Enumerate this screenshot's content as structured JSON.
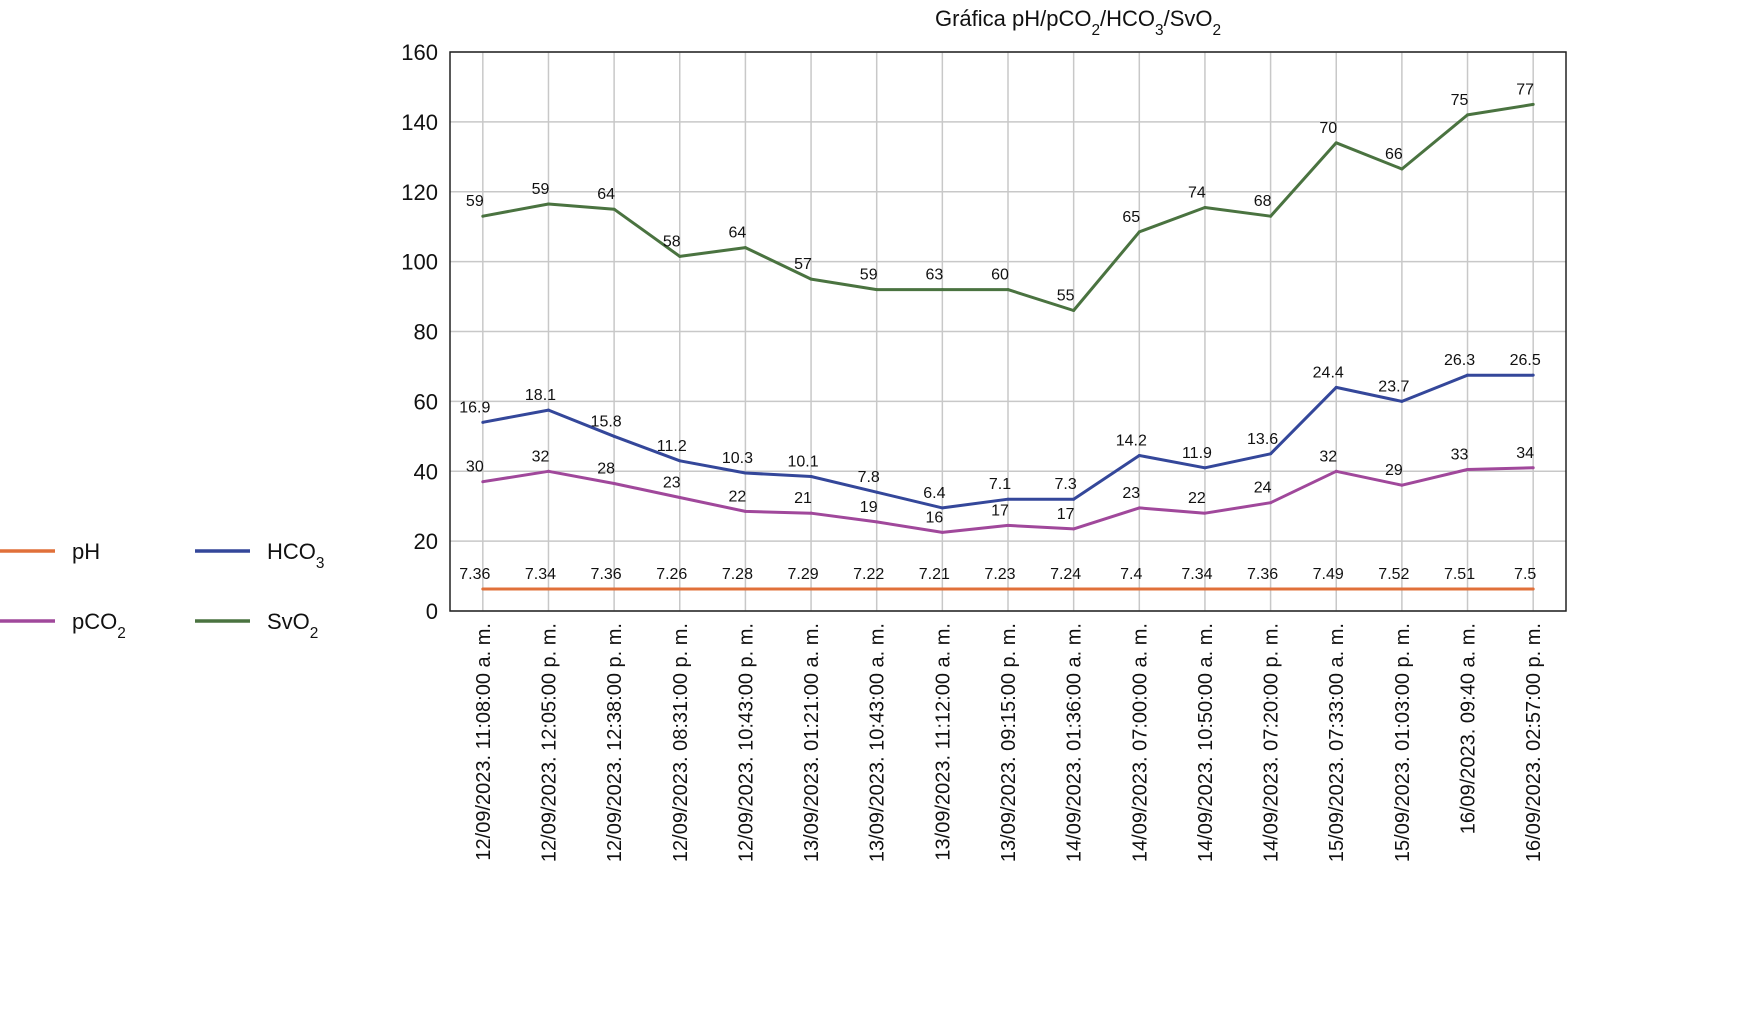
{
  "chart_data": {
    "type": "line",
    "title": "Gráfica pH/pCO₂/HCO₃/SvO₂",
    "title_parts": [
      {
        "text": "Gráfica pH/pCO",
        "sub": false
      },
      {
        "text": "2",
        "sub": true
      },
      {
        "text": "/HCO",
        "sub": false
      },
      {
        "text": "3",
        "sub": true
      },
      {
        "text": "/SvO",
        "sub": false
      },
      {
        "text": "2",
        "sub": true
      }
    ],
    "xlabel": "",
    "ylabel": "",
    "ylim": [
      0,
      160
    ],
    "yticks": [
      0,
      20,
      40,
      60,
      80,
      100,
      120,
      140,
      160
    ],
    "ytick_labels": [
      "0",
      "20",
      "40",
      "60",
      "80",
      "100",
      "120",
      "140",
      "160"
    ],
    "grid": true,
    "legend_position": "left",
    "categories": [
      "12/09/2023. 11:08:00 a. m.",
      "12/09/2023. 12:05:00 p. m.",
      "12/09/2023. 12:38:00 p. m.",
      "12/09/2023. 08:31:00 p. m.",
      "12/09/2023. 10:43:00 p. m.",
      "13/09/2023. 01:21:00 a. m.",
      "13/09/2023. 10:43:00 a. m.",
      "13/09/2023. 11:12:00 a. m.",
      "13/09/2023. 09:15:00 p. m.",
      "14/09/2023. 01:36:00 a. m.",
      "14/09/2023. 07:00:00 a. m.",
      "14/09/2023. 10:50:00 a. m.",
      "14/09/2023. 07:20:00 p. m.",
      "15/09/2023. 07:33:00 a. m.",
      "15/09/2023. 01:03:00 p. m.",
      "16/09/2023. 09:40 a. m.",
      "16/09/2023. 02:57:00 p. m."
    ],
    "series": [
      {
        "name": "SvO2",
        "legend_parts": [
          {
            "text": "SvO",
            "sub": false
          },
          {
            "text": "2",
            "sub": true
          }
        ],
        "color": "#4a7340",
        "values": [
          113,
          116.5,
          115,
          101.5,
          104,
          95,
          92,
          92,
          92,
          86,
          108.5,
          115.5,
          113,
          134,
          126.5,
          142,
          145
        ],
        "labels": [
          "59",
          "59",
          "64",
          "58",
          "64",
          "57",
          "59",
          "63",
          "60",
          "55",
          "65",
          "74",
          "68",
          "70",
          "66",
          "75",
          "77"
        ]
      },
      {
        "name": "HCO3",
        "legend_parts": [
          {
            "text": "HCO",
            "sub": false
          },
          {
            "text": "3",
            "sub": true
          }
        ],
        "color": "#34479a",
        "values": [
          54,
          57.5,
          50,
          43,
          39.5,
          38.5,
          34,
          29.5,
          32,
          32,
          44.5,
          41,
          45,
          64,
          60,
          67.5,
          67.5
        ],
        "labels": [
          "16.9",
          "18.1",
          "15.8",
          "11.2",
          "10.3",
          "10.1",
          "7.8",
          "6.4",
          "7.1",
          "7.3",
          "14.2",
          "11.9",
          "13.6",
          "24.4",
          "23.7",
          "26.3",
          "26.5"
        ]
      },
      {
        "name": "pCO2",
        "legend_parts": [
          {
            "text": "pCO",
            "sub": false
          },
          {
            "text": "2",
            "sub": true
          }
        ],
        "color": "#a0489b",
        "values": [
          37,
          40,
          36.5,
          32.5,
          28.5,
          28,
          25.5,
          22.5,
          24.5,
          23.5,
          29.5,
          28,
          31,
          40,
          36,
          40.5,
          41
        ],
        "labels": [
          "30",
          "32",
          "28",
          "23",
          "22",
          "21",
          "19",
          "16",
          "17",
          "17",
          "23",
          "22",
          "24",
          "32",
          "29",
          "33",
          "34"
        ]
      },
      {
        "name": "pH",
        "legend_parts": [
          {
            "text": "pH",
            "sub": false
          }
        ],
        "color": "#e0703a",
        "values": [
          6.3,
          6.3,
          6.3,
          6.3,
          6.3,
          6.3,
          6.3,
          6.3,
          6.3,
          6.3,
          6.3,
          6.3,
          6.3,
          6.3,
          6.3,
          6.3,
          6.3
        ],
        "labels": [
          "7.36",
          "7.34",
          "7.36",
          "7.26",
          "7.28",
          "7.29",
          "7.22",
          "7.21",
          "7.23",
          "7.24",
          "7.4",
          "7.34",
          "7.36",
          "7.49",
          "7.52",
          "7.51",
          "7.5"
        ]
      }
    ],
    "legend_order": [
      "pH",
      "HCO3",
      "pCO2",
      "SvO2"
    ]
  }
}
